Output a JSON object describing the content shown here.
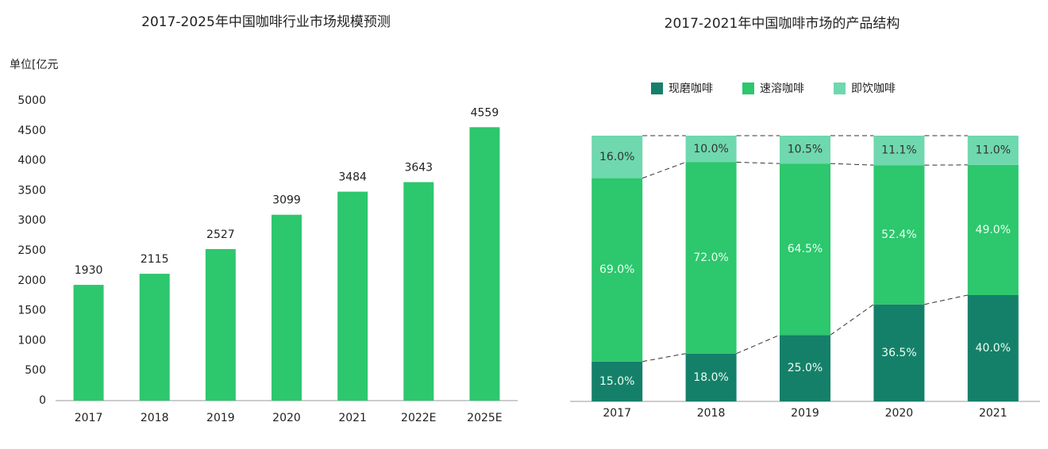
{
  "chart_data": [
    {
      "type": "bar",
      "title": "2017-2025年中国咖啡行业市场规模预测",
      "y_label": "单位[亿元",
      "categories": [
        "2017",
        "2018",
        "2019",
        "2020",
        "2021",
        "2022E",
        "2025E"
      ],
      "values": [
        1930,
        2115,
        2527,
        3099,
        3484,
        3643,
        4559
      ],
      "color": "#2dc76d",
      "ylim": [
        0,
        5000
      ],
      "yticks": [
        0,
        500,
        1000,
        1500,
        2000,
        2500,
        3000,
        3500,
        4000,
        4500,
        5000
      ]
    },
    {
      "type": "stacked_bar",
      "title": "2017-2021年中国咖啡市场的产品结构",
      "categories": [
        "2017",
        "2018",
        "2019",
        "2020",
        "2021"
      ],
      "series": [
        {
          "name": "现磨咖啡",
          "color": "#15806a",
          "values": [
            15.0,
            18.0,
            25.0,
            36.5,
            40.0
          ],
          "value_labels": [
            "15.0%",
            "18.0%",
            "25.0%",
            "36.5%",
            "40.0%"
          ]
        },
        {
          "name": "速溶咖啡",
          "color": "#2dc76d",
          "values": [
            69.0,
            72.0,
            64.5,
            52.4,
            49.0
          ],
          "value_labels": [
            "69.0%",
            "72.0%",
            "64.5%",
            "52.4%",
            "49.0%"
          ]
        },
        {
          "name": "即饮咖啡",
          "color": "#6fd8ae",
          "values": [
            16.0,
            10.0,
            10.5,
            11.1,
            11.0
          ],
          "value_labels": [
            "16.0%",
            "10.0%",
            "10.5%",
            "11.1%",
            "11.0%"
          ]
        }
      ],
      "ylim": [
        0,
        100
      ]
    }
  ]
}
